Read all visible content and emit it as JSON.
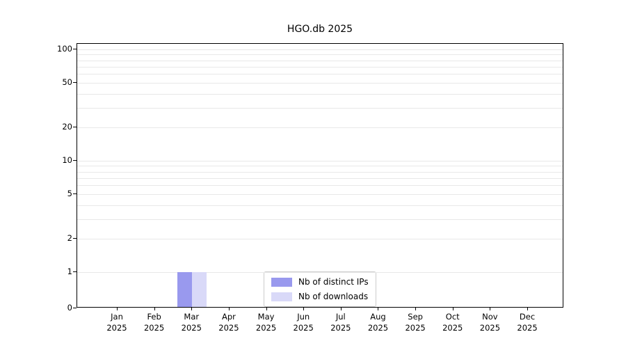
{
  "chart_data": {
    "type": "bar",
    "title": "HGO.db 2025",
    "categories": [
      "Jan",
      "Feb",
      "Mar",
      "Apr",
      "May",
      "Jun",
      "Jul",
      "Aug",
      "Sep",
      "Oct",
      "Nov",
      "Dec"
    ],
    "year_label": "2025",
    "series": [
      {
        "name": "Nb of distinct IPs",
        "color": "#9999ee",
        "values": [
          0,
          0,
          1,
          0,
          0,
          0,
          0,
          0,
          0,
          0,
          0,
          0
        ]
      },
      {
        "name": "Nb of downloads",
        "color": "#d9d9f8",
        "values": [
          0,
          0,
          1,
          0,
          0,
          0,
          0,
          0,
          0,
          0,
          0,
          0
        ]
      }
    ],
    "yscale": "symlog",
    "y_ticks": [
      100,
      50,
      20,
      10,
      5,
      2,
      1,
      0
    ],
    "ylim": [
      0,
      115
    ],
    "grid": true,
    "legend_position": "bottom-center"
  },
  "colors": {
    "distinct_ips": "#9999ee",
    "downloads": "#d9d9f8",
    "gridline": "#e8e8e8",
    "axis": "#000000"
  }
}
